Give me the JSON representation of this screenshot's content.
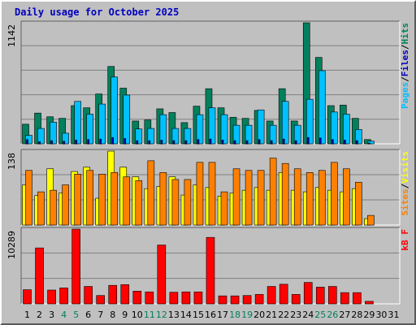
{
  "title": "Daily usage for October 2025",
  "colors": {
    "background": "#c0c0c0",
    "plot_background": "#c0c0c0",
    "grid": "#808080",
    "title_text": "#0000c0",
    "weekend_day": "#00805c",
    "weekday_day": "#000000",
    "hits": "#00805c",
    "files": "#00c0ff",
    "pages": "#00c0ff",
    "visits": "#ffff00",
    "sites": "#ff8000",
    "kbytes": "#ff0000"
  },
  "weekend_days": [
    4,
    5,
    11,
    12,
    18,
    19,
    25,
    26
  ],
  "right_labels": {
    "top": [
      {
        "text": "Pages",
        "color": "#00c0ff"
      },
      {
        "text": "/",
        "color": "#000000"
      },
      {
        "text": "Files",
        "color": "#0000c0"
      },
      {
        "text": "/",
        "color": "#000000"
      },
      {
        "text": "Hits",
        "color": "#00805c"
      }
    ],
    "middle": [
      {
        "text": "Sites",
        "color": "#ff8000"
      },
      {
        "text": "/",
        "color": "#000000"
      },
      {
        "text": "Visits",
        "color": "#ffff00"
      }
    ],
    "bottom": [
      {
        "text": "kB F",
        "color": "#ff0000"
      }
    ]
  },
  "chart_data": [
    {
      "type": "bar",
      "panel": "top",
      "max_label": "1142",
      "ylim": [
        0,
        1142
      ],
      "categories": [
        "1",
        "2",
        "3",
        "4",
        "5",
        "6",
        "7",
        "8",
        "9",
        "10",
        "11",
        "12",
        "13",
        "14",
        "15",
        "16",
        "17",
        "18",
        "19",
        "20",
        "21",
        "22",
        "23",
        "24",
        "25",
        "26",
        "27",
        "28",
        "29",
        "30",
        "31"
      ],
      "series": [
        {
          "name": "Hits",
          "color": "#00805c",
          "values": [
            185,
            290,
            255,
            240,
            360,
            340,
            470,
            730,
            525,
            215,
            225,
            330,
            295,
            200,
            355,
            520,
            340,
            250,
            240,
            315,
            215,
            520,
            215,
            1142,
            815,
            360,
            365,
            240,
            40,
            0,
            0
          ]
        },
        {
          "name": "Files",
          "color": "#00c0ff",
          "values": [
            80,
            145,
            205,
            100,
            400,
            280,
            375,
            630,
            460,
            140,
            145,
            275,
            145,
            145,
            275,
            340,
            275,
            175,
            175,
            320,
            175,
            400,
            175,
            420,
            690,
            300,
            280,
            135,
            25,
            0,
            0
          ]
        },
        {
          "name": "Pages",
          "color": "#0000c0",
          "values": [
            40,
            20,
            30,
            25,
            35,
            40,
            45,
            60,
            50,
            30,
            30,
            35,
            30,
            30,
            40,
            45,
            35,
            30,
            30,
            40,
            30,
            45,
            30,
            60,
            55,
            40,
            35,
            30,
            5,
            0,
            0
          ]
        }
      ]
    },
    {
      "type": "bar",
      "panel": "middle",
      "max_label": "138",
      "ylim": [
        0,
        138
      ],
      "categories": [
        "1",
        "2",
        "3",
        "4",
        "5",
        "6",
        "7",
        "8",
        "9",
        "10",
        "11",
        "12",
        "13",
        "14",
        "15",
        "16",
        "17",
        "18",
        "19",
        "20",
        "21",
        "22",
        "23",
        "24",
        "25",
        "26",
        "27",
        "28",
        "29",
        "30",
        "31"
      ],
      "series": [
        {
          "name": "Visits",
          "color": "#ffff00",
          "values": [
            75,
            55,
            105,
            60,
            100,
            108,
            50,
            138,
            108,
            90,
            68,
            72,
            90,
            56,
            75,
            70,
            54,
            60,
            65,
            70,
            65,
            98,
            65,
            62,
            70,
            65,
            62,
            68,
            12,
            0,
            0
          ]
        },
        {
          "name": "Sites",
          "color": "#ff8000",
          "values": [
            102,
            62,
            65,
            75,
            95,
            102,
            95,
            98,
            90,
            83,
            120,
            98,
            85,
            85,
            117,
            117,
            62,
            105,
            102,
            102,
            125,
            115,
            105,
            98,
            102,
            117,
            105,
            80,
            18,
            0,
            0
          ]
        }
      ]
    },
    {
      "type": "bar",
      "panel": "bottom",
      "max_label": "10289",
      "ylim": [
        0,
        10289
      ],
      "categories": [
        "1",
        "2",
        "3",
        "4",
        "5",
        "6",
        "7",
        "8",
        "9",
        "10",
        "11",
        "12",
        "13",
        "14",
        "15",
        "16",
        "17",
        "18",
        "19",
        "20",
        "21",
        "22",
        "23",
        "24",
        "25",
        "26",
        "27",
        "28",
        "29",
        "30",
        "31"
      ],
      "series": [
        {
          "name": "KBytes",
          "color": "#ff0000",
          "values": [
            1950,
            7700,
            1900,
            2200,
            10289,
            2400,
            1150,
            2550,
            2650,
            1750,
            1650,
            8100,
            1600,
            1650,
            1650,
            9150,
            1100,
            1100,
            1150,
            1300,
            2400,
            2700,
            1300,
            2950,
            2300,
            2400,
            1550,
            1550,
            350,
            0,
            0
          ]
        }
      ]
    }
  ]
}
